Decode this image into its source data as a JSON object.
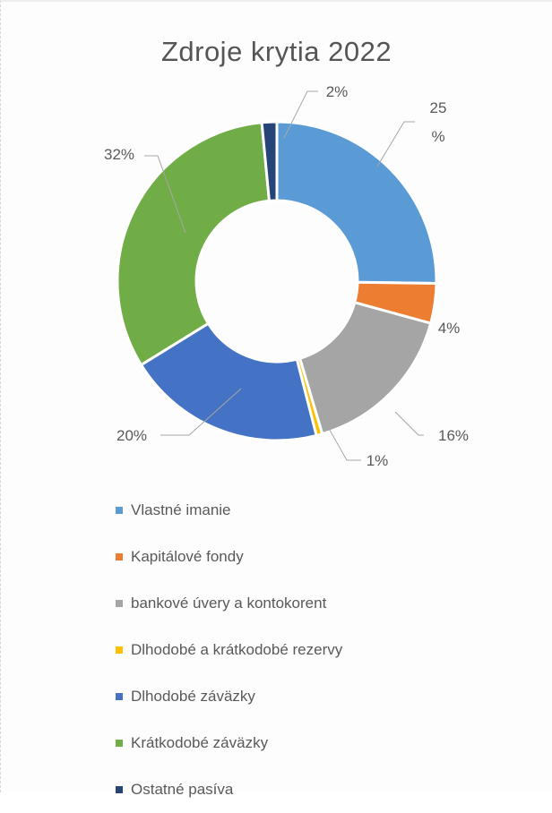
{
  "chart_data": {
    "type": "doughnut",
    "title": "Zdroje krytia 2022",
    "legend_position": "bottom",
    "series": [
      {
        "name": "Vlastné imanie",
        "value": 25,
        "label": "25\n%",
        "color": "#5B9BD5"
      },
      {
        "name": "Kapitálové fondy",
        "value": 4,
        "label": "4%",
        "color": "#ED7D31"
      },
      {
        "name": "bankové úvery a kontokorent",
        "value": 16,
        "label": "16%",
        "color": "#A5A5A5"
      },
      {
        "name": "Dlhodobé a krátkodobé rezervy",
        "value": 0.6,
        "label": "1%",
        "color": "#FFC000"
      },
      {
        "name": "Dlhodobé záväzky",
        "value": 20,
        "label": "20%",
        "color": "#4472C4"
      },
      {
        "name": "Krátkodobé záväzky",
        "value": 32,
        "label": "32%",
        "color": "#70AD47"
      },
      {
        "name": "Ostatné pasíva",
        "value": 1.5,
        "label": "2%",
        "color": "#264478"
      }
    ]
  }
}
